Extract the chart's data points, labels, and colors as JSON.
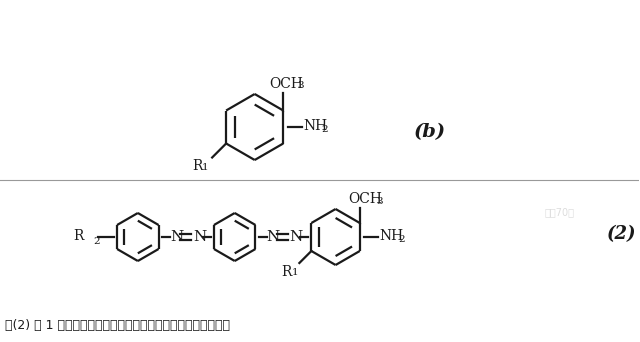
{
  "bg_color": "#ffffff",
  "line_color": "#1a1a1a",
  "fig_width": 6.4,
  "fig_height": 3.42,
  "dpi": 100,
  "label_b": "(b)",
  "label_2": "(2)",
  "bottom_text": "（(2) 的 1 次偶氮体进行第二次重氮化，其二次重氮化产物与通",
  "watermark": "化工70婆"
}
